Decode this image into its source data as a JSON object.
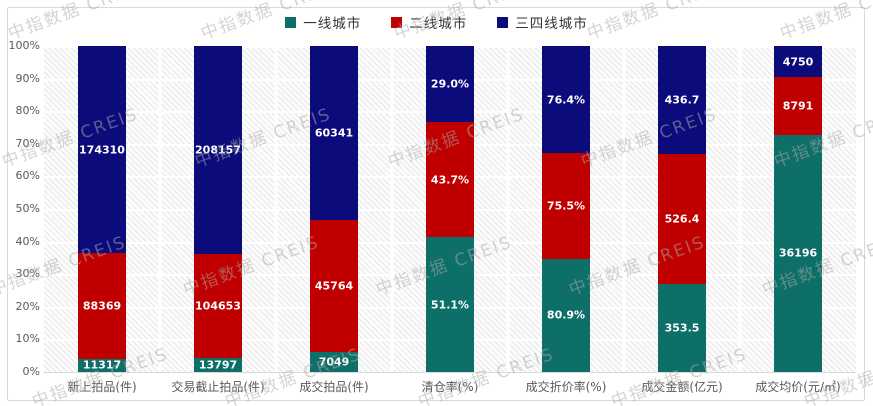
{
  "watermark": {
    "text": "中指数据 CREIS"
  },
  "legend": [
    {
      "label": "一线城市",
      "color": "#0e6f68"
    },
    {
      "label": "二线城市",
      "color": "#c00000"
    },
    {
      "label": "三四线城市",
      "color": "#0b0b7b"
    }
  ],
  "chart_data": {
    "type": "bar",
    "stacking": "percent",
    "title": "",
    "xlabel": "",
    "ylabel": "",
    "grid": true,
    "legend_position": "top",
    "categories": [
      "新上拍品(件)",
      "交易截止拍品(件)",
      "成交拍品(件)",
      "清仓率(%)",
      "成交折价率(%)",
      "成交金额(亿元)",
      "成交均价(元/㎡)"
    ],
    "series": [
      {
        "name": "一线城市",
        "color": "#0e6f68",
        "values": [
          11317,
          13797,
          7049,
          51.1,
          80.9,
          353.5,
          36196
        ],
        "labels": [
          "11317",
          "13797",
          "7049",
          "51.1%",
          "80.9%",
          "353.5",
          "36196"
        ]
      },
      {
        "name": "二线城市",
        "color": "#c00000",
        "values": [
          88369,
          104653,
          45764,
          43.7,
          75.5,
          526.4,
          8791
        ],
        "labels": [
          "88369",
          "104653",
          "45764",
          "43.7%",
          "75.5%",
          "526.4",
          "8791"
        ]
      },
      {
        "name": "三四线城市",
        "color": "#0b0b7b",
        "values": [
          174310,
          208157,
          60341,
          29.0,
          76.4,
          436.7,
          4750
        ],
        "labels": [
          "174310",
          "208157",
          "60341",
          "29.0%",
          "76.4%",
          "436.7",
          "4750"
        ]
      }
    ],
    "y_axis": {
      "min": 0,
      "max": 100,
      "ticks": [
        "0%",
        "10%",
        "20%",
        "30%",
        "40%",
        "50%",
        "60%",
        "70%",
        "80%",
        "90%",
        "100%"
      ]
    }
  }
}
